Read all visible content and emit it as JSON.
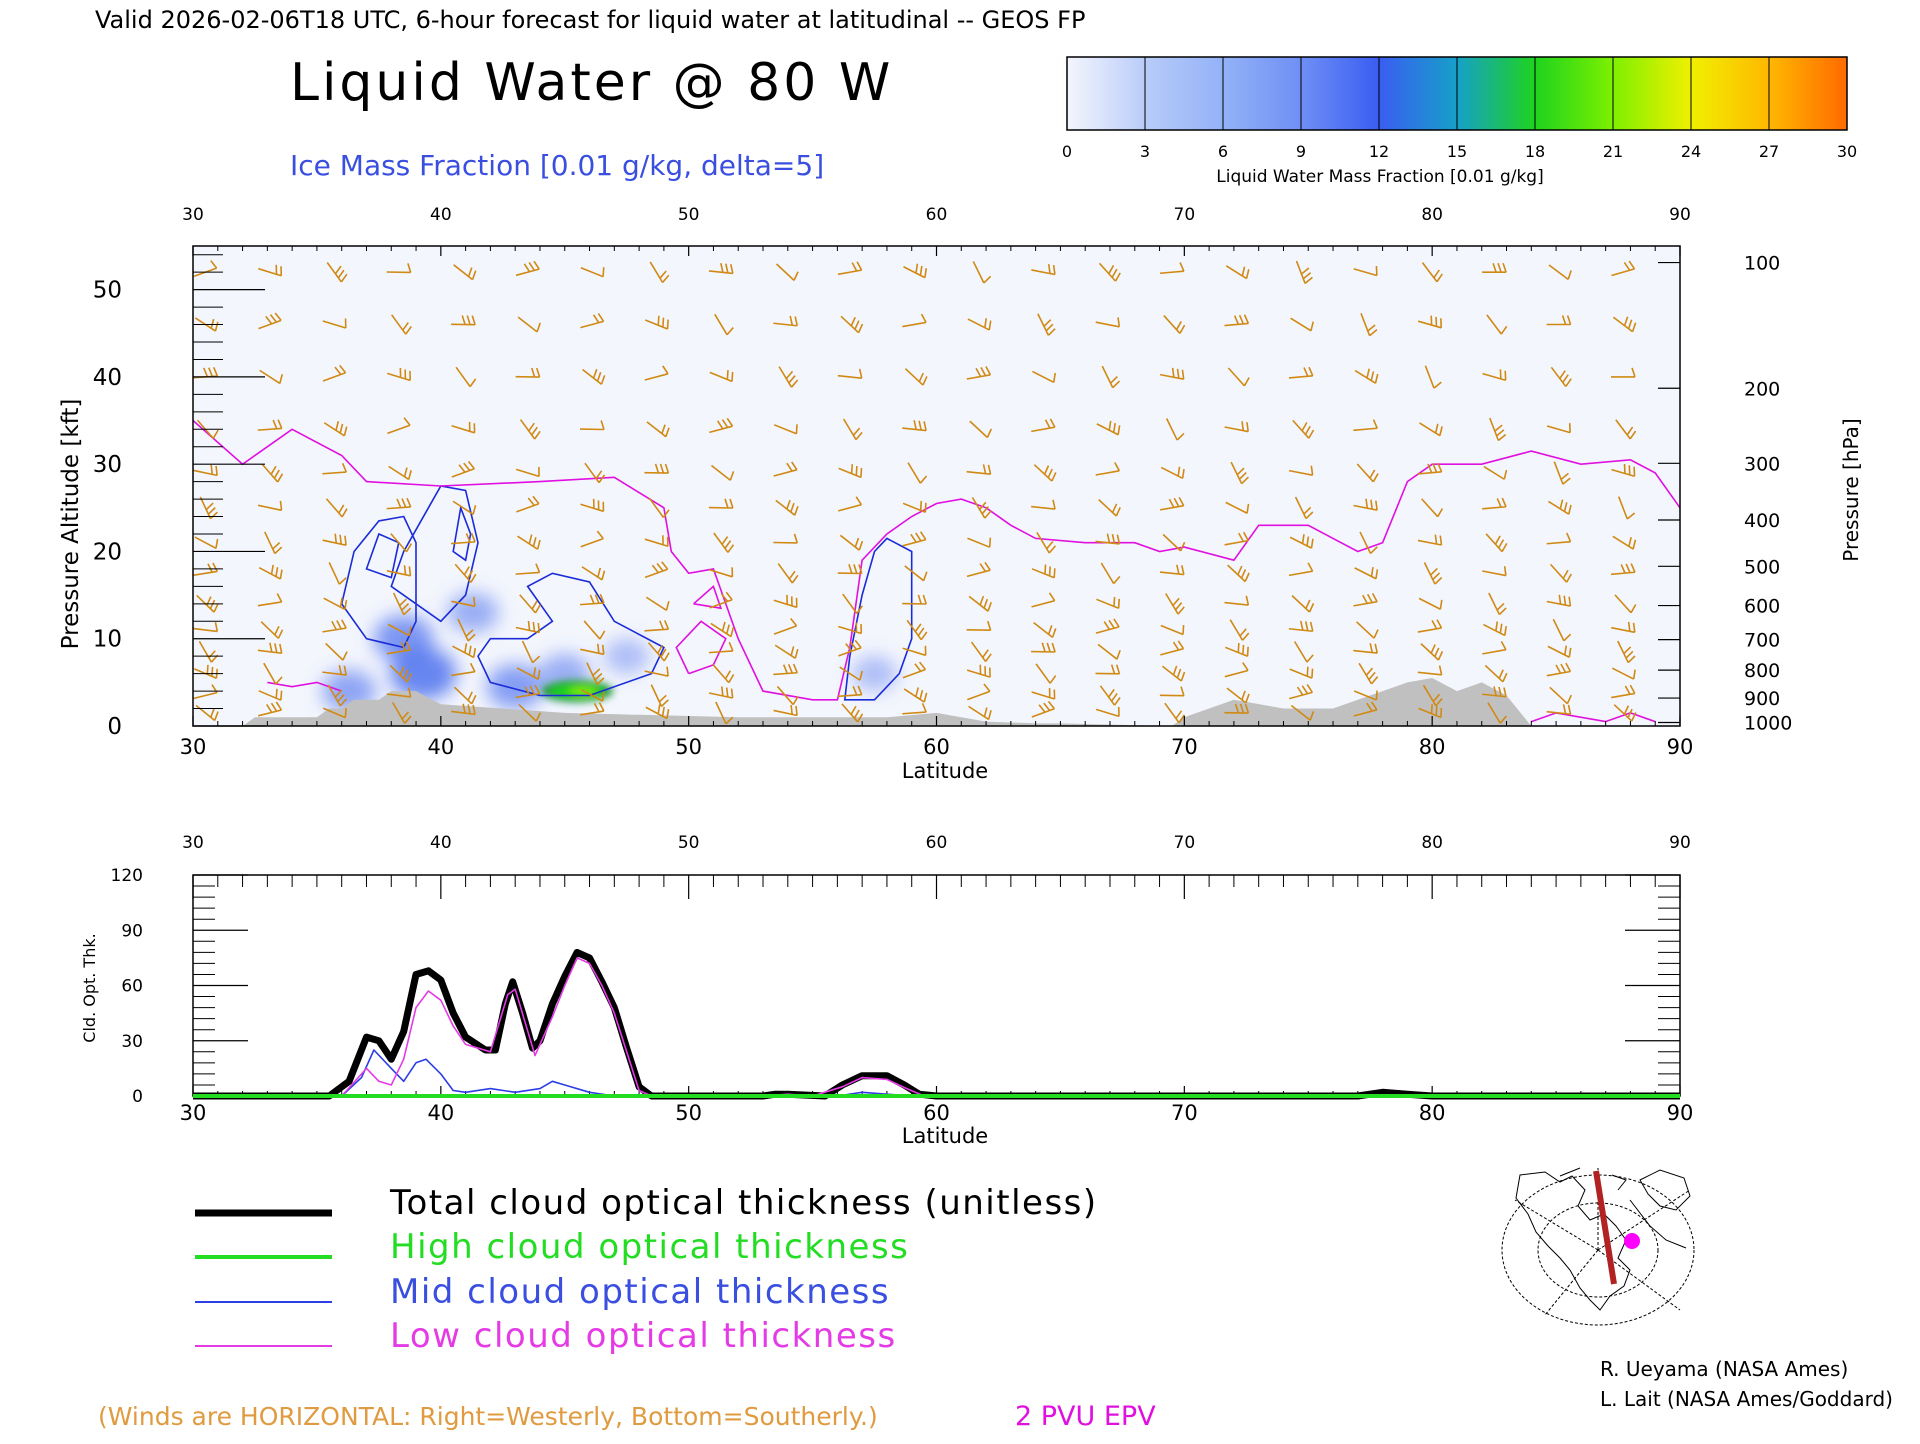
{
  "header": {
    "valid_line": "Valid 2026-02-06T18 UTC, 6-hour forecast for liquid water at latitudinal -- GEOS FP",
    "title": "Liquid Water @ 80 W",
    "subtitle": "Ice Mass Fraction [0.01 g/kg, delta=5]"
  },
  "colorbar": {
    "ticks": [
      "0",
      "3",
      "6",
      "9",
      "12",
      "15",
      "18",
      "21",
      "24",
      "27",
      "30"
    ],
    "label": "Liquid Water Mass Fraction [0.01 g/kg]",
    "colors": [
      "#f4f6fd",
      "#b9ccf9",
      "#93b2f7",
      "#6f8ff5",
      "#3a5df2",
      "#16a0c8",
      "#1ed31e",
      "#7ef000",
      "#f0f000",
      "#ffb800",
      "#ff6a00"
    ]
  },
  "legend": [
    {
      "label": "Total cloud optical thickness (unitless)",
      "color": "#000000"
    },
    {
      "label": "High cloud optical thickness",
      "color": "#22dd22"
    },
    {
      "label": "Mid cloud optical thickness",
      "color": "#2c3ee6"
    },
    {
      "label": "Low cloud optical thickness",
      "color": "#e53be5"
    }
  ],
  "footer": {
    "winds_note": "(Winds are HORIZONTAL: Right=Westerly, Bottom=Southerly.)",
    "pvu_label": "2 PVU EPV",
    "credit1": "R. Ueyama (NASA Ames)",
    "credit2": "L. Lait (NASA Ames/Goddard)"
  },
  "colors": {
    "wind_barb": "#d08a14",
    "pvu": "#e010e0",
    "ice_contour": "#1a2bd8",
    "terrain": "#c0c0c0",
    "title_blue": "#3a4fe0",
    "note_orange": "#e09a40",
    "background_field": "#f4f6fd"
  },
  "chart_data": [
    {
      "type": "heatmap",
      "name": "liquid-water-cross-section",
      "xlabel": "Latitude",
      "ylabel": "Pressure Altitude [kft]",
      "y2label": "Pressure [hPa]",
      "xlim": [
        30,
        90
      ],
      "ylim": [
        0,
        55
      ],
      "x_ticks": [
        30,
        40,
        50,
        60,
        70,
        80,
        90
      ],
      "y_ticks": [
        0,
        10,
        20,
        30,
        40,
        50
      ],
      "pressure_ticks": [
        {
          "hpa": "100",
          "kft": 53.1
        },
        {
          "hpa": "200",
          "kft": 38.7
        },
        {
          "hpa": "300",
          "kft": 30.1
        },
        {
          "hpa": "400",
          "kft": 23.6
        },
        {
          "hpa": "500",
          "kft": 18.3
        },
        {
          "hpa": "600",
          "kft": 13.8
        },
        {
          "hpa": "700",
          "kft": 9.9
        },
        {
          "hpa": "800",
          "kft": 6.4
        },
        {
          "hpa": "900",
          "kft": 3.2
        },
        {
          "hpa": "1000",
          "kft": 0.4
        }
      ],
      "pvu_2_line": [
        [
          30,
          35
        ],
        [
          32,
          30
        ],
        [
          34,
          34
        ],
        [
          36,
          31
        ],
        [
          37,
          28
        ],
        [
          40,
          27.5
        ],
        [
          44,
          28
        ],
        [
          47,
          28.5
        ],
        [
          49,
          25
        ],
        [
          49.3,
          20
        ],
        [
          50,
          17.5
        ],
        [
          51,
          18
        ],
        [
          52,
          10
        ],
        [
          53,
          4
        ],
        [
          55,
          3
        ],
        [
          56,
          3
        ],
        [
          56.5,
          9
        ],
        [
          57,
          19
        ],
        [
          58,
          22
        ],
        [
          59,
          24
        ],
        [
          60,
          25.5
        ],
        [
          61,
          26
        ],
        [
          62,
          25
        ],
        [
          63,
          23
        ],
        [
          64,
          21.5
        ],
        [
          66,
          21
        ],
        [
          68,
          21
        ],
        [
          69,
          20
        ],
        [
          70,
          20.5
        ],
        [
          72,
          19
        ],
        [
          73,
          23
        ],
        [
          75,
          23
        ],
        [
          76,
          21.5
        ],
        [
          77,
          20
        ],
        [
          78,
          21
        ],
        [
          79,
          28
        ],
        [
          80,
          30
        ],
        [
          82,
          30
        ],
        [
          84,
          31.5
        ],
        [
          86,
          30
        ],
        [
          88,
          30.5
        ],
        [
          89,
          29
        ],
        [
          90,
          25
        ]
      ],
      "ice_contours_5": [
        [
          [
            36,
            14
          ],
          [
            36.5,
            20
          ],
          [
            37.5,
            23.5
          ],
          [
            38.5,
            24
          ],
          [
            39,
            21
          ],
          [
            39,
            12
          ],
          [
            38.5,
            9
          ],
          [
            37,
            10
          ],
          [
            36,
            14
          ]
        ],
        [
          [
            38,
            16
          ],
          [
            38.5,
            20
          ],
          [
            39.5,
            25
          ],
          [
            40,
            27.5
          ],
          [
            41,
            27
          ],
          [
            41.5,
            21
          ],
          [
            41,
            15
          ],
          [
            40,
            12
          ],
          [
            38,
            16
          ]
        ],
        [
          [
            41.5,
            8
          ],
          [
            42,
            10
          ],
          [
            43.5,
            10
          ],
          [
            44.5,
            12
          ],
          [
            43.5,
            16
          ],
          [
            44.5,
            17.5
          ],
          [
            46,
            16.5
          ],
          [
            47,
            12
          ],
          [
            48,
            10.5
          ],
          [
            49,
            9
          ],
          [
            48.5,
            6
          ],
          [
            46,
            3.5
          ],
          [
            44,
            3.5
          ],
          [
            42,
            5
          ],
          [
            41.5,
            8
          ]
        ],
        [
          [
            56.3,
            3
          ],
          [
            56.5,
            8
          ],
          [
            57,
            15
          ],
          [
            57.5,
            20
          ],
          [
            58,
            21.5
          ],
          [
            59,
            20
          ],
          [
            59,
            10
          ],
          [
            58.5,
            6
          ],
          [
            57.5,
            3
          ],
          [
            56.3,
            3
          ]
        ]
      ],
      "ice_contours_10": [
        [
          [
            37,
            18
          ],
          [
            37.5,
            22
          ],
          [
            38.3,
            21
          ],
          [
            38,
            17
          ],
          [
            37,
            18
          ]
        ],
        [
          [
            40.5,
            20
          ],
          [
            40.8,
            25
          ],
          [
            41.2,
            22
          ],
          [
            41,
            19
          ],
          [
            40.5,
            20
          ]
        ]
      ],
      "ice_blobs": [
        {
          "lat": 38.5,
          "kft": 10,
          "value": 8
        },
        {
          "lat": 39.3,
          "kft": 6,
          "value": 10
        },
        {
          "lat": 41.3,
          "kft": 13,
          "value": 5
        },
        {
          "lat": 43,
          "kft": 4.5,
          "value": 7
        },
        {
          "lat": 45,
          "kft": 6,
          "value": 5
        },
        {
          "lat": 47.5,
          "kft": 8,
          "value": 3
        },
        {
          "lat": 57.5,
          "kft": 6,
          "value": 3
        },
        {
          "lat": 36.3,
          "kft": 4,
          "value": 6
        }
      ],
      "liquid_blob": {
        "lat": 45.5,
        "kft": 4,
        "value": 16
      },
      "terrain_kft": [
        [
          30,
          0
        ],
        [
          32,
          0
        ],
        [
          32.5,
          1
        ],
        [
          35,
          1
        ],
        [
          35.5,
          2
        ],
        [
          36,
          2
        ],
        [
          36.5,
          3
        ],
        [
          37.5,
          3
        ],
        [
          38,
          4
        ],
        [
          39,
          4
        ],
        [
          40,
          2.5
        ],
        [
          45,
          1.5
        ],
        [
          52,
          1
        ],
        [
          58,
          1
        ],
        [
          60,
          1.5
        ],
        [
          62,
          0.5
        ],
        [
          64,
          0.3
        ],
        [
          65,
          0.3
        ],
        [
          69.5,
          0
        ],
        [
          70,
          1
        ],
        [
          71,
          2
        ],
        [
          72,
          3
        ],
        [
          74,
          2
        ],
        [
          76,
          2
        ],
        [
          77,
          3
        ],
        [
          78,
          4
        ],
        [
          79,
          5
        ],
        [
          80,
          5.5
        ],
        [
          81,
          4
        ],
        [
          82,
          5
        ],
        [
          83,
          3.5
        ],
        [
          84,
          0
        ],
        [
          90,
          0
        ]
      ]
    },
    {
      "type": "line",
      "name": "cloud-optical-thickness",
      "xlabel": "Latitude",
      "ylabel": "Cld. Opt. Thk.",
      "xlim": [
        30,
        90
      ],
      "ylim": [
        0,
        120
      ],
      "x_ticks": [
        30,
        40,
        50,
        60,
        70,
        80,
        90
      ],
      "y_ticks": [
        0,
        30,
        60,
        90,
        120
      ],
      "series": [
        {
          "name": "Total cloud optical thickness (unitless)",
          "points": [
            [
              30,
              0
            ],
            [
              35.5,
              0
            ],
            [
              36.3,
              8
            ],
            [
              37,
              32
            ],
            [
              37.5,
              30
            ],
            [
              38,
              20
            ],
            [
              38.5,
              35
            ],
            [
              39,
              66
            ],
            [
              39.5,
              68
            ],
            [
              40,
              63
            ],
            [
              40.5,
              45
            ],
            [
              41,
              32
            ],
            [
              41.8,
              25
            ],
            [
              42.2,
              25
            ],
            [
              42.6,
              50
            ],
            [
              42.9,
              62
            ],
            [
              43.3,
              45
            ],
            [
              43.7,
              26
            ],
            [
              44,
              30
            ],
            [
              44.5,
              50
            ],
            [
              45,
              65
            ],
            [
              45.5,
              78
            ],
            [
              46,
              75
            ],
            [
              46.5,
              62
            ],
            [
              47,
              48
            ],
            [
              47.5,
              26
            ],
            [
              48,
              5
            ],
            [
              48.5,
              0
            ],
            [
              53,
              0
            ],
            [
              53.5,
              1
            ],
            [
              54,
              1
            ],
            [
              55.5,
              0
            ],
            [
              56.2,
              6
            ],
            [
              57,
              11
            ],
            [
              58,
              11
            ],
            [
              58.7,
              6
            ],
            [
              59.3,
              1
            ],
            [
              60,
              0
            ],
            [
              77,
              0
            ],
            [
              78,
              2
            ],
            [
              79,
              1
            ],
            [
              80,
              0
            ],
            [
              90,
              0
            ]
          ]
        },
        {
          "name": "High cloud optical thickness",
          "points": [
            [
              30,
              0
            ],
            [
              90,
              0
            ]
          ]
        },
        {
          "name": "Mid cloud optical thickness",
          "points": [
            [
              30,
              0
            ],
            [
              36,
              0
            ],
            [
              36.8,
              10
            ],
            [
              37.3,
              25
            ],
            [
              38,
              15
            ],
            [
              38.5,
              8
            ],
            [
              39,
              18
            ],
            [
              39.4,
              20
            ],
            [
              40,
              12
            ],
            [
              40.5,
              3
            ],
            [
              41,
              2
            ],
            [
              42,
              4
            ],
            [
              43,
              2
            ],
            [
              44,
              4
            ],
            [
              44.5,
              8
            ],
            [
              45,
              6
            ],
            [
              46,
              2
            ],
            [
              47,
              0
            ],
            [
              56,
              0
            ],
            [
              57,
              2
            ],
            [
              58,
              1
            ],
            [
              59,
              0
            ],
            [
              90,
              0
            ]
          ]
        },
        {
          "name": "Low cloud optical thickness",
          "points": [
            [
              30,
              0
            ],
            [
              36,
              0
            ],
            [
              37,
              15
            ],
            [
              37.5,
              8
            ],
            [
              38,
              6
            ],
            [
              38.5,
              20
            ],
            [
              39,
              48
            ],
            [
              39.5,
              57
            ],
            [
              40,
              52
            ],
            [
              40.5,
              38
            ],
            [
              41,
              28
            ],
            [
              42,
              24
            ],
            [
              42.7,
              55
            ],
            [
              43,
              58
            ],
            [
              43.4,
              40
            ],
            [
              43.8,
              22
            ],
            [
              44.5,
              43
            ],
            [
              45,
              60
            ],
            [
              45.5,
              75
            ],
            [
              46,
              72
            ],
            [
              46.5,
              60
            ],
            [
              47,
              45
            ],
            [
              47.5,
              24
            ],
            [
              48,
              3
            ],
            [
              48.5,
              0
            ],
            [
              53,
              0
            ],
            [
              54,
              1
            ],
            [
              55,
              0
            ],
            [
              56.2,
              5
            ],
            [
              57,
              10
            ],
            [
              58,
              9
            ],
            [
              58.8,
              4
            ],
            [
              59.5,
              0
            ],
            [
              90,
              0
            ]
          ]
        }
      ]
    }
  ]
}
